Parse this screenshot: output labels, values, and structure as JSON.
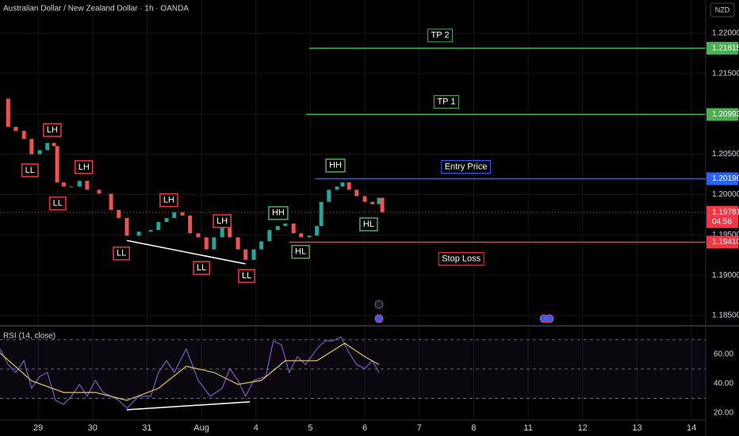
{
  "chart_data": [
    {
      "type": "candlestick",
      "title": "Australian Dollar / New Zealand Dollar · 1h · OANDA",
      "currency": "NZD",
      "xlim": [
        -0.7,
        12.26
      ],
      "xticks": [
        {
          "value": 0,
          "label": "29"
        },
        {
          "value": 1,
          "label": "30"
        },
        {
          "value": 2,
          "label": "31"
        },
        {
          "value": 3,
          "label": "Aug"
        },
        {
          "value": 4,
          "label": "4"
        },
        {
          "value": 5,
          "label": "5"
        },
        {
          "value": 6,
          "label": "6"
        },
        {
          "value": 7,
          "label": "7"
        },
        {
          "value": 8,
          "label": "8"
        },
        {
          "value": 9,
          "label": "11"
        },
        {
          "value": 10,
          "label": "12"
        },
        {
          "value": 11,
          "label": "13"
        },
        {
          "value": 12,
          "label": "14"
        }
      ],
      "ylim": [
        1.18382,
        1.22413
      ],
      "yticks": [
        {
          "value": 1.185,
          "label": "1.18500"
        },
        {
          "value": 1.19,
          "label": "1.19000"
        },
        {
          "value": 1.195,
          "label": "1.19500"
        },
        {
          "value": 1.2,
          "label": "1.20000"
        },
        {
          "value": 1.205,
          "label": "1.20500"
        },
        {
          "value": 1.21,
          "label": "1.21000"
        },
        {
          "value": 1.215,
          "label": "1.21500"
        },
        {
          "value": 1.22,
          "label": "1.22000"
        }
      ],
      "series": [
        {
          "color_up": "#26a69a",
          "color_down": "#ef5350",
          "x": [
            -0.67,
            -0.55,
            -0.41,
            -0.26,
            -0.12,
            0.03,
            0.17,
            0.29,
            0.35,
            0.47,
            0.61,
            0.76,
            0.9,
            1.12,
            1.34,
            1.48,
            1.63,
            1.85,
            2.07,
            2.21,
            2.36,
            2.5,
            2.65,
            2.79,
            2.94,
            3.09,
            3.23,
            3.38,
            3.52,
            3.67,
            3.81,
            3.96,
            4.1,
            4.25,
            4.4,
            4.54,
            4.69,
            4.83,
            4.98,
            5.12,
            5.2,
            5.34,
            5.49,
            5.59,
            5.71,
            5.85,
            6.0,
            6.14,
            6.26,
            6.32
          ],
          "values": [
            1.2119,
            1.2084,
            1.2079,
            1.2069,
            1.205,
            1.2055,
            1.2064,
            1.206,
            1.2015,
            1.201,
            1.201,
            1.2017,
            1.2006,
            1.2001,
            1.1981,
            1.1971,
            1.1949,
            1.1954,
            1.1956,
            1.1966,
            1.1971,
            1.1978,
            1.1974,
            1.1952,
            1.1947,
            1.1932,
            1.1947,
            1.1961,
            1.1947,
            1.1932,
            1.1919,
            1.1932,
            1.1942,
            1.1956,
            1.1961,
            1.1964,
            1.1952,
            1.1947,
            1.1949,
            1.1961,
            1.1991,
            1.2006,
            1.201,
            1.2015,
            1.2006,
            1.1998,
            1.1991,
            1.1988,
            1.1996,
            1.1978
          ]
        }
      ],
      "levels": [
        {
          "label": "TP 2",
          "value": 1.21815,
          "value_label": "1.21815",
          "from": 4.98,
          "color": "#4caf50"
        },
        {
          "label": "TP 1",
          "value": 1.20993,
          "value_label": "1.20993",
          "from": 4.92,
          "color": "#4caf50"
        },
        {
          "label": "Entry Price",
          "value": 1.20196,
          "value_label": "1.20196",
          "from": 5.09,
          "color": "#2962ff"
        },
        {
          "label": "Stop Loss",
          "value": 1.1941,
          "value_label": "1.19410",
          "from": 4.61,
          "color": "#f23645"
        }
      ],
      "last": {
        "value": 1.19781,
        "countdown": "04:56",
        "color": "#f23645"
      },
      "annotations": [
        {
          "text": "LL",
          "x": -0.15,
          "y": 1.203,
          "color": "#f23645"
        },
        {
          "text": "LH",
          "x": 0.26,
          "y": 1.208,
          "color": "#f23645"
        },
        {
          "text": "LH",
          "x": 0.84,
          "y": 1.2034,
          "color": "#f23645"
        },
        {
          "text": "LL",
          "x": 0.36,
          "y": 1.1989,
          "color": "#f23645"
        },
        {
          "text": "LH",
          "x": 2.4,
          "y": 1.1993,
          "color": "#f23645"
        },
        {
          "text": "LL",
          "x": 1.53,
          "y": 1.1927,
          "color": "#f23645"
        },
        {
          "text": "LH",
          "x": 3.38,
          "y": 1.1967,
          "color": "#f23645"
        },
        {
          "text": "LL",
          "x": 3.0,
          "y": 1.1909,
          "color": "#f23645"
        },
        {
          "text": "LL",
          "x": 3.83,
          "y": 1.1899,
          "color": "#f23645"
        },
        {
          "text": "HH",
          "x": 4.41,
          "y": 1.1977,
          "color": "#4caf50"
        },
        {
          "text": "HL",
          "x": 4.82,
          "y": 1.1929,
          "color": "#4caf50"
        },
        {
          "text": "HH",
          "x": 5.46,
          "y": 1.2036,
          "color": "#4caf50"
        },
        {
          "text": "HL",
          "x": 6.07,
          "y": 1.1963,
          "color": "#4caf50"
        }
      ],
      "trendlines": [
        {
          "color": "#ffffff",
          "x": [
            1.63,
            3.81
          ],
          "y": [
            1.1943,
            1.1914
          ]
        }
      ]
    },
    {
      "type": "line",
      "title": "RSI (14, close)",
      "ylim": [
        15.1,
        78.4
      ],
      "yticks": [
        {
          "value": 20,
          "label": "20.00"
        },
        {
          "value": 40,
          "label": "40.00"
        },
        {
          "value": 60,
          "label": "60.00"
        }
      ],
      "levels": [
        30,
        50,
        70
      ],
      "series": [
        {
          "color": "#7e57c2",
          "x": [
            -0.7,
            -0.55,
            -0.41,
            -0.26,
            -0.12,
            0.03,
            0.17,
            0.32,
            0.47,
            0.61,
            0.76,
            0.9,
            1.05,
            1.19,
            1.34,
            1.48,
            1.63,
            1.85,
            2.07,
            2.21,
            2.36,
            2.5,
            2.72,
            2.94,
            3.16,
            3.38,
            3.52,
            3.67,
            3.81,
            3.96,
            4.18,
            4.32,
            4.47,
            4.61,
            4.76,
            4.91,
            5.12,
            5.27,
            5.41,
            5.56,
            5.71,
            5.85,
            6.0,
            6.14,
            6.26
          ],
          "values": [
            63.8,
            53.0,
            47.6,
            55.7,
            36.8,
            44.9,
            47.6,
            28.6,
            25.9,
            31.4,
            39.5,
            31.4,
            42.2,
            34.1,
            31.4,
            28.6,
            23.2,
            31.4,
            31.4,
            47.6,
            55.7,
            47.6,
            63.8,
            42.2,
            31.4,
            36.8,
            50.3,
            42.2,
            31.4,
            42.2,
            44.9,
            69.2,
            66.5,
            47.6,
            58.4,
            53.0,
            63.8,
            69.2,
            69.2,
            71.9,
            61.1,
            53.0,
            50.3,
            55.7,
            47.6
          ]
        },
        {
          "color": "#e0c463",
          "x": [
            -0.7,
            -0.12,
            0.47,
            1.05,
            1.63,
            2.21,
            2.72,
            3.23,
            3.67,
            4.1,
            4.54,
            5.12,
            5.63,
            6.0,
            6.26
          ],
          "values": [
            61.0,
            42.0,
            34.0,
            34.0,
            28.6,
            36.8,
            51.9,
            47.6,
            39.5,
            42.2,
            55.7,
            55.7,
            67.6,
            58.4,
            53.0
          ]
        }
      ],
      "trendlines": [
        {
          "color": "#ffffff",
          "x": [
            1.63,
            3.89
          ],
          "y": [
            22.2,
            27.6
          ]
        }
      ]
    }
  ]
}
